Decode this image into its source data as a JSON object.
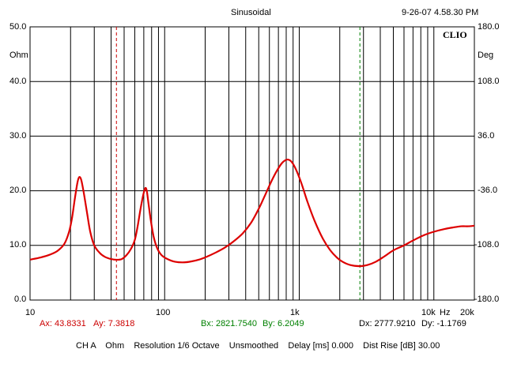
{
  "header": {
    "title": "Sinusoidal",
    "timestamp": "9-26-07 4.58.30 PM",
    "brand": "CLIO"
  },
  "axes": {
    "left_unit": "Ohm",
    "right_unit": "Deg",
    "left_ticks": [
      "50.0",
      "40.0",
      "30.0",
      "20.0",
      "10.0",
      "0.0"
    ],
    "right_ticks": [
      "180.0",
      "108.0",
      "36.0",
      "-36.0",
      "-108.0",
      "-180.0"
    ],
    "x_ticks": [
      "10",
      "100",
      "1k",
      "10k",
      "20k"
    ],
    "x_unit": "Hz"
  },
  "cursors": {
    "a_x": "Ax: 43.8331",
    "a_y": "Ay: 7.3818",
    "b_x": "Bx: 2821.7540",
    "b_y": "By: 6.2049",
    "dx": "Dx: 2777.9210",
    "dy": "Dy: -1.1769",
    "a_color": "#cc0000",
    "b_color": "#008000"
  },
  "footer": {
    "status": "CH A    Ohm    Resolution 1/6 Octave    Unsmoothed    Delay [ms] 0.000    Dist Rise [dB] 30.00"
  },
  "chart_data": {
    "type": "line",
    "xscale": "log",
    "xlim": [
      10,
      20000
    ],
    "ylim": [
      0,
      50
    ],
    "ylim_right": [
      -180,
      180
    ],
    "grid": true,
    "cursor_a_x": 43.8331,
    "cursor_b_x": 2821.754,
    "series": [
      {
        "color": "#dd0000",
        "x": [
          10,
          12,
          14,
          16,
          18,
          19.5,
          20.5,
          21.5,
          22.5,
          23.2,
          24,
          25,
          26.5,
          28,
          30,
          33,
          36,
          40,
          43.8,
          48,
          52,
          56,
          60,
          63,
          66,
          69,
          71,
          72.5,
          74,
          76,
          79,
          83,
          88,
          95,
          105,
          120,
          140,
          160,
          180,
          200,
          240,
          280,
          320,
          380,
          440,
          500,
          560,
          620,
          680,
          740,
          790,
          830,
          870,
          920,
          980,
          1050,
          1150,
          1300,
          1500,
          1700,
          1900,
          2100,
          2400,
          2821.75,
          3200,
          3700,
          4300,
          5000,
          6000,
          7000,
          8500,
          10000,
          12000,
          14000,
          16000,
          18000,
          20000
        ],
        "values": [
          7.4,
          7.8,
          8.3,
          9.0,
          10.3,
          12.5,
          15.0,
          18.5,
          21.5,
          22.5,
          22.0,
          19.8,
          16.0,
          12.5,
          10.0,
          8.6,
          7.9,
          7.5,
          7.38,
          7.5,
          8.2,
          9.3,
          11.0,
          13.5,
          16.5,
          19.0,
          20.2,
          20.5,
          19.7,
          17.5,
          14.5,
          11.5,
          9.5,
          8.2,
          7.5,
          7.0,
          6.9,
          7.1,
          7.4,
          7.8,
          8.7,
          9.6,
          10.6,
          12.2,
          14.2,
          16.7,
          19.3,
          21.7,
          23.6,
          25.0,
          25.6,
          25.7,
          25.4,
          24.5,
          23.0,
          21.0,
          18.0,
          14.5,
          11.2,
          9.1,
          7.8,
          7.0,
          6.4,
          6.2,
          6.4,
          7.0,
          8.0,
          9.1,
          10.0,
          10.9,
          11.9,
          12.5,
          13.0,
          13.3,
          13.5,
          13.5,
          13.6
        ]
      }
    ]
  }
}
